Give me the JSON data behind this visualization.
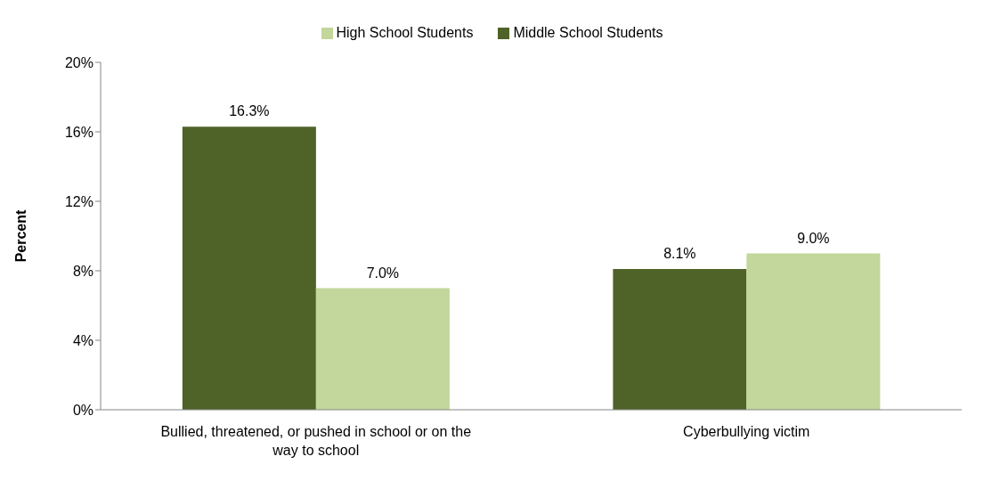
{
  "chart_data": {
    "type": "bar",
    "ylabel": "Percent",
    "categories": [
      "Bullied, threatened, or pushed in school or on the way to school",
      "Cyberbullying victim"
    ],
    "series": [
      {
        "name": "Middle School Students",
        "color": "#4f6228",
        "values": [
          16.3,
          8.1
        ],
        "value_labels": [
          "16.3%",
          "8.1%"
        ]
      },
      {
        "name": "High School Students",
        "color": "#c3d69b",
        "values": [
          7.0,
          9.0
        ],
        "value_labels": [
          "7.0%",
          "9.0%"
        ]
      }
    ],
    "ylim": [
      0,
      20
    ],
    "yticks": [
      {
        "value": 0,
        "label": "0%"
      },
      {
        "value": 4,
        "label": "4%"
      },
      {
        "value": 8,
        "label": "8%"
      },
      {
        "value": 12,
        "label": "12%"
      },
      {
        "value": 16,
        "label": "16%"
      },
      {
        "value": 20,
        "label": "20%"
      }
    ],
    "grid": false,
    "legend": "top"
  }
}
